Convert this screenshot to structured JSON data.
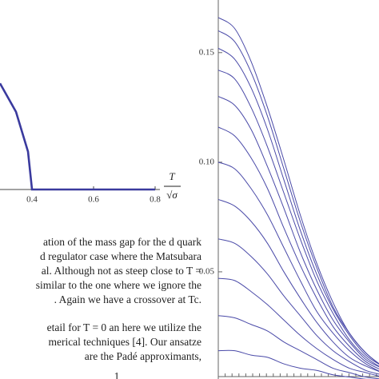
{
  "chart_data": [
    {
      "type": "line",
      "x": [
        0.296,
        0.348,
        0.387,
        0.4,
        0.6,
        0.8
      ],
      "values": [
        0.56,
        0.41,
        0.2,
        0,
        0,
        0
      ],
      "color": "#3a3a9e",
      "xlim": [
        0.296,
        0.82
      ],
      "ylim": [
        0,
        1
      ],
      "xticks": [
        0.4,
        0.6,
        0.8
      ],
      "xlabel": {
        "numerator": "T",
        "denominator": "√σ"
      }
    },
    {
      "type": "curves",
      "x": [
        0,
        1,
        2,
        3,
        4,
        5,
        6,
        7,
        8,
        9,
        10
      ],
      "xlim": [
        0,
        10
      ],
      "ylim": [
        0,
        0.174
      ],
      "yticks": [
        {
          "value": 0.05,
          "label": "0.05"
        },
        {
          "value": 0.1,
          "label": "0.10"
        },
        {
          "value": 0.15,
          "label": "0.15"
        }
      ],
      "color": "#4a4aa8",
      "series": [
        {
          "values": [
            0.166,
            0.161,
            0.146,
            0.125,
            0.101,
            0.076,
            0.054,
            0.036,
            0.022,
            0.013,
            0.007
          ]
        },
        {
          "values": [
            0.16,
            0.155,
            0.141,
            0.121,
            0.097,
            0.073,
            0.052,
            0.034,
            0.022,
            0.013,
            0.007
          ]
        },
        {
          "values": [
            0.152,
            0.147,
            0.134,
            0.115,
            0.092,
            0.069,
            0.049,
            0.033,
            0.021,
            0.012,
            0.007
          ]
        },
        {
          "values": [
            0.142,
            0.138,
            0.125,
            0.107,
            0.086,
            0.065,
            0.046,
            0.031,
            0.019,
            0.011,
            0.006
          ]
        },
        {
          "values": [
            0.13,
            0.126,
            0.115,
            0.098,
            0.079,
            0.059,
            0.042,
            0.028,
            0.018,
            0.01,
            0.006
          ]
        },
        {
          "values": [
            0.116,
            0.112,
            0.102,
            0.088,
            0.07,
            0.053,
            0.038,
            0.025,
            0.016,
            0.009,
            0.005
          ]
        },
        {
          "values": [
            0.1,
            0.097,
            0.088,
            0.076,
            0.061,
            0.046,
            0.032,
            0.022,
            0.014,
            0.008,
            0.004
          ]
        },
        {
          "values": [
            0.083,
            0.08,
            0.073,
            0.063,
            0.05,
            0.038,
            0.027,
            0.018,
            0.011,
            0.007,
            0.004
          ]
        },
        {
          "values": [
            0.065,
            0.063,
            0.057,
            0.049,
            0.039,
            0.03,
            0.021,
            0.014,
            0.009,
            0.005,
            0.003
          ]
        },
        {
          "values": [
            0.047,
            0.046,
            0.041,
            0.035,
            0.028,
            0.021,
            0.015,
            0.01,
            0.006,
            0.004,
            0.002
          ]
        },
        {
          "values": [
            0.03,
            0.029,
            0.026,
            0.023,
            0.018,
            0.014,
            0.01,
            0.006,
            0.004,
            0.002,
            0.001
          ]
        },
        {
          "values": [
            0.014,
            0.014,
            0.012,
            0.011,
            0.008,
            0.006,
            0.005,
            0.003,
            0.002,
            0.001,
            0.001
          ]
        }
      ]
    }
  ],
  "text": {
    "paragraph_1": [
      "ation of the mass gap for the d quark",
      "d regulator case where the Matsubara",
      "al. Although not as steep close to T =",
      "similar to the one where we ignore the",
      ". Again we have a crossover at Tc."
    ],
    "paragraph_2": [
      "etail for T = 0 an here we utilize the",
      "merical techniques [4]. Our ansatze",
      "are the Padé approximants,"
    ],
    "formula_fragment": "1"
  }
}
